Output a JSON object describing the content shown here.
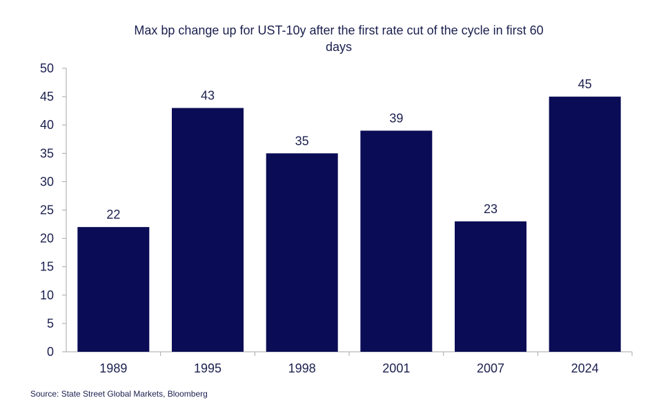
{
  "chart_data": {
    "type": "bar",
    "title_lines": [
      "Max bp change up for UST-10y after the first rate cut of the cycle in first 60",
      "days"
    ],
    "categories": [
      "1989",
      "1995",
      "1998",
      "2001",
      "2007",
      "2024"
    ],
    "values": [
      22,
      43,
      35,
      39,
      23,
      45
    ],
    "data_labels": [
      "22",
      "43",
      "35",
      "39",
      "23",
      "45"
    ],
    "ylim": [
      0,
      50
    ],
    "yticks": [
      0,
      5,
      10,
      15,
      20,
      25,
      30,
      35,
      40,
      45,
      50
    ],
    "xlabel": "",
    "ylabel": "",
    "grid": false,
    "legend": "none",
    "bar_color": "#0a0c55",
    "axis_color": "#a6a6a6",
    "text_color": "#1a1f4e"
  },
  "source": "Source: State Street Global Markets, Bloomberg"
}
